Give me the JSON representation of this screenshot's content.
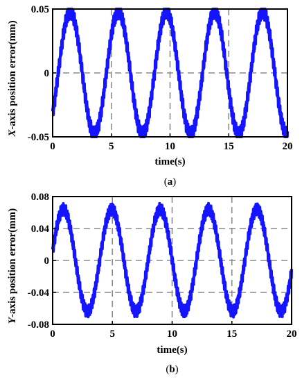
{
  "chart_data": [
    {
      "type": "line",
      "caption": "a",
      "xlabel": "time(s)",
      "ylabel_italic": "X",
      "ylabel_rest": "-axis position error(mm)",
      "xlim": [
        0,
        20
      ],
      "ylim": [
        -0.05,
        0.05
      ],
      "xticks": [
        0,
        5,
        10,
        15,
        20
      ],
      "yticks": [
        -0.05,
        0,
        0.05
      ],
      "xtick_labels": [
        "0",
        "5",
        "10",
        "15",
        "20"
      ],
      "ytick_labels": [
        "-0.05",
        "0",
        "0.05"
      ],
      "grid": true,
      "series": [
        {
          "color": "#1414ff",
          "amplitude": 0.048,
          "period_s": 4.1,
          "peak_times_s": [
            1.5,
            5.8,
            10.0,
            14.1,
            18.1
          ]
        }
      ]
    },
    {
      "type": "line",
      "caption": "b",
      "xlabel": "time(s)",
      "ylabel_italic": "Y",
      "ylabel_rest": "-axis position error(mm)",
      "xlim": [
        0,
        20
      ],
      "ylim": [
        -0.08,
        0.08
      ],
      "xticks": [
        0,
        5,
        10,
        15,
        20
      ],
      "yticks": [
        -0.08,
        -0.04,
        0,
        0.04,
        0.08
      ],
      "xtick_labels": [
        "0",
        "5",
        "10",
        "15",
        "20"
      ],
      "ytick_labels": [
        "-0.08",
        "-0.04",
        "0",
        "0.04",
        "0.08"
      ],
      "grid": true,
      "series": [
        {
          "color": "#1414ff",
          "amplitude": 0.064,
          "period_s": 4.05,
          "peak_times_s": [
            0.9,
            4.9,
            9.0,
            13.0,
            17.0
          ]
        }
      ]
    }
  ]
}
